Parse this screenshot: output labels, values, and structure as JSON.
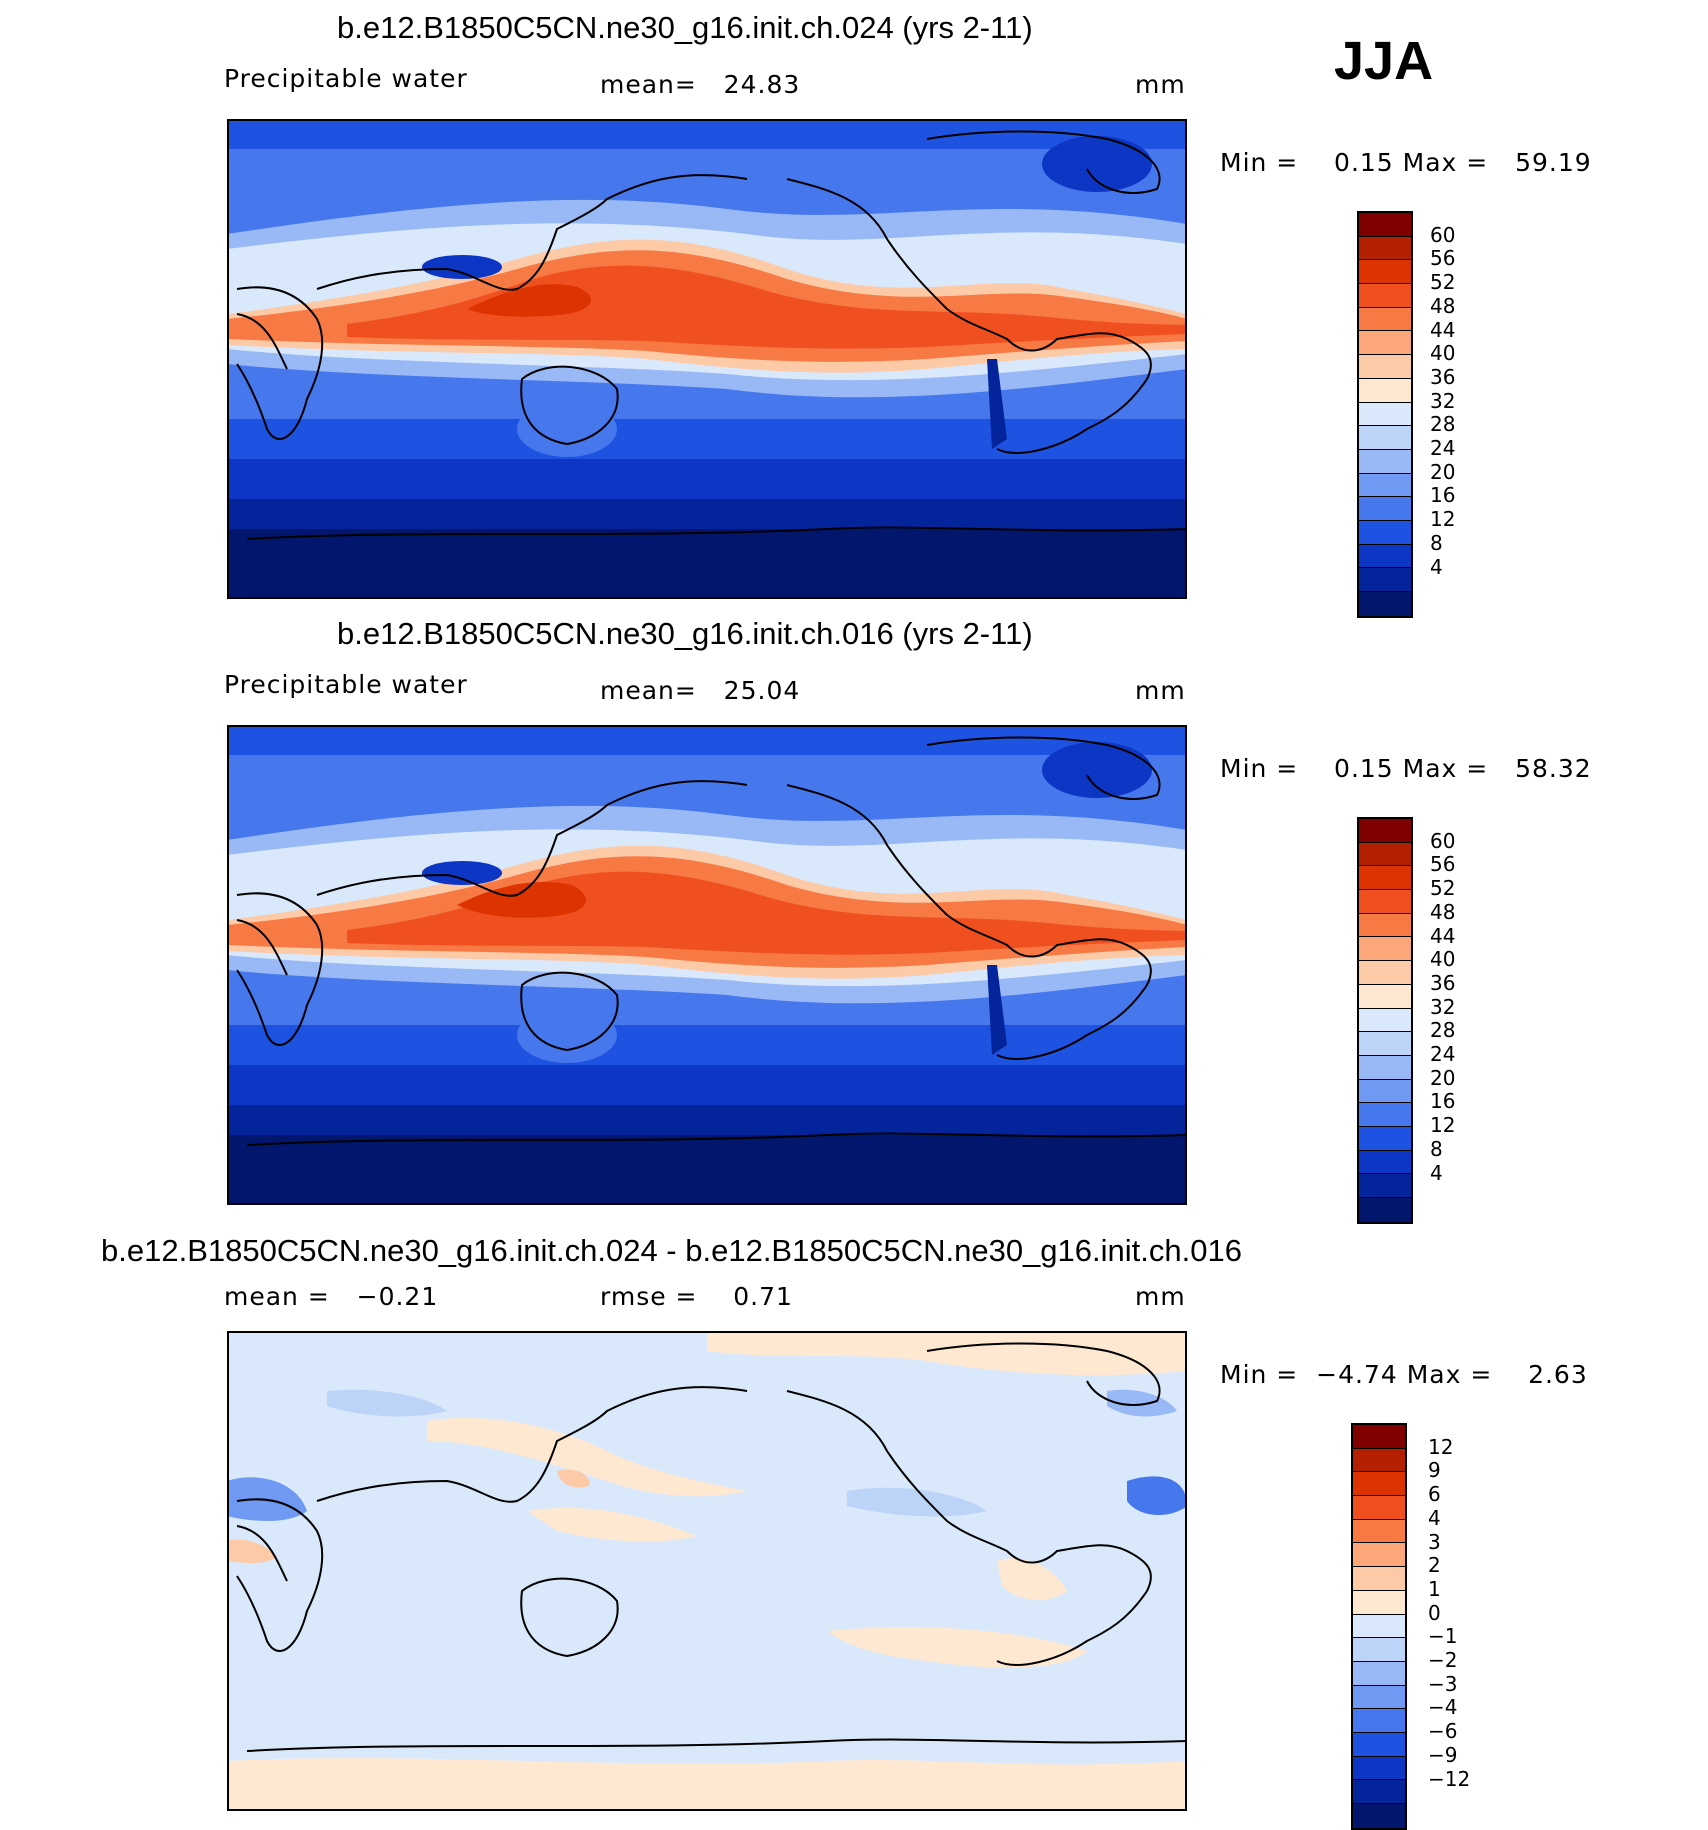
{
  "season": "JJA",
  "panels": [
    {
      "title": "b.e12.B1850C5CN.ne30_g16.init.ch.024 (yrs 2-11)",
      "variable": "Precipitable water",
      "stat1": "mean=   24.83",
      "units": "mm",
      "minmax": "Min =    0.15 Max =   59.19",
      "colorbar": {
        "colors": [
          "#800000",
          "#B22000",
          "#DD3300",
          "#F05020",
          "#F77A45",
          "#FBA77A",
          "#FDCAA8",
          "#FEE8D2",
          "#D9E9FB",
          "#BCD4F8",
          "#98B9F6",
          "#6F99F2",
          "#4677EC",
          "#1D53E0",
          "#0C36C3",
          "#04249C",
          "#02166E"
        ],
        "labels": [
          "60",
          "56",
          "52",
          "48",
          "44",
          "40",
          "36",
          "32",
          "28",
          "24",
          "20",
          "16",
          "12",
          "8",
          "4"
        ]
      }
    },
    {
      "title": "b.e12.B1850C5CN.ne30_g16.init.ch.016 (yrs 2-11)",
      "variable": "Precipitable water",
      "stat1": "mean=   25.04",
      "units": "mm",
      "minmax": "Min =    0.15 Max =   58.32",
      "colorbar": {
        "colors": [
          "#800000",
          "#B22000",
          "#DD3300",
          "#F05020",
          "#F77A45",
          "#FBA77A",
          "#FDCAA8",
          "#FEE8D2",
          "#D9E9FB",
          "#BCD4F8",
          "#98B9F6",
          "#6F99F2",
          "#4677EC",
          "#1D53E0",
          "#0C36C3",
          "#04249C",
          "#02166E"
        ],
        "labels": [
          "60",
          "56",
          "52",
          "48",
          "44",
          "40",
          "36",
          "32",
          "28",
          "24",
          "20",
          "16",
          "12",
          "8",
          "4"
        ]
      }
    },
    {
      "title": "b.e12.B1850C5CN.ne30_g16.init.ch.024 - b.e12.B1850C5CN.ne30_g16.init.ch.016",
      "stat1": "mean =   −0.21",
      "stat2": "rmse =    0.71",
      "units": "mm",
      "minmax": "Min =  −4.74 Max =    2.63",
      "colorbar": {
        "colors": [
          "#800000",
          "#B22000",
          "#DD3300",
          "#F05020",
          "#F77A45",
          "#FBA77A",
          "#FDCAA8",
          "#FEE8D2",
          "#D9E9FB",
          "#BCD4F8",
          "#98B9F6",
          "#6F99F2",
          "#4677EC",
          "#1D53E0",
          "#0C36C3",
          "#04249C",
          "#02166E"
        ],
        "labels": [
          "12",
          "9",
          "6",
          "4",
          "3",
          "2",
          "1",
          "0",
          "−1",
          "−2",
          "−3",
          "−4",
          "−6",
          "−9",
          "−12"
        ]
      }
    }
  ]
}
